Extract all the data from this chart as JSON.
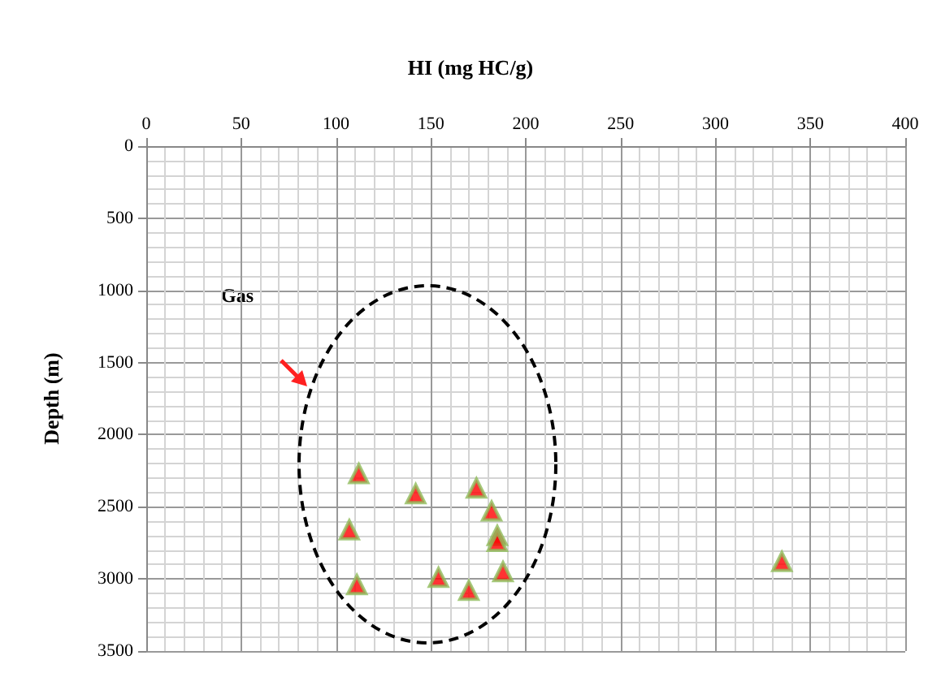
{
  "chart_data": {
    "type": "scatter",
    "xlabel": "HI (mg HC/g)",
    "ylabel": "Depth (m)",
    "xlim": [
      0,
      400
    ],
    "xticks": [
      0,
      50,
      100,
      150,
      200,
      250,
      300,
      350,
      400
    ],
    "ylim": [
      3500,
      0
    ],
    "yticks": [
      0,
      500,
      1000,
      1500,
      2000,
      2500,
      3000,
      3500
    ],
    "grid": true,
    "marker": "triangle",
    "annotations": [
      "Gas"
    ],
    "series": [
      {
        "color": "#ff0000",
        "x": [
          112,
          142,
          174,
          182,
          107,
          185,
          185,
          188,
          154,
          111,
          170,
          335
        ],
        "values": [
          2270,
          2410,
          2370,
          2530,
          2660,
          2700,
          2740,
          2950,
          2990,
          3040,
          3080,
          2880
        ]
      }
    ]
  }
}
